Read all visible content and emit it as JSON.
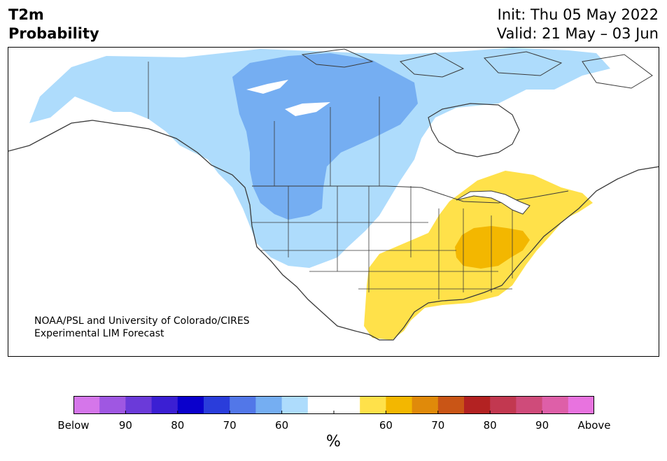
{
  "header": {
    "title_line1": "T2m",
    "title_line2": "Probability",
    "init": "Init: Thu 05 May 2022",
    "valid": "Valid: 21 May – 03 Jun"
  },
  "credit": {
    "line1": "NOAA/PSL and University of Colorado/CIRES",
    "line2": "Experimental LIM Forecast"
  },
  "colorbar": {
    "colors": [
      "#d576ea",
      "#9f57e2",
      "#6b3ad9",
      "#3b1fd3",
      "#0a00cc",
      "#2a3ddb",
      "#5277e8",
      "#75aef2",
      "#aedcfc",
      "#ffffff",
      "#ffffff",
      "#ffe14a",
      "#f3b700",
      "#e08a0a",
      "#c95516",
      "#b32222",
      "#c23850",
      "#cf4b7a",
      "#de5fa8",
      "#e873df"
    ],
    "tick_labels": [
      "Below",
      "90",
      "80",
      "70",
      "60",
      "",
      "60",
      "70",
      "80",
      "90",
      "Above"
    ],
    "unit": "%"
  },
  "map": {
    "region": "North America",
    "colors": {
      "prob_60_cold": "#aedcfc",
      "prob_70_cold": "#75aef2",
      "prob_60_warm": "#ffe14a",
      "prob_70_warm": "#f3b700",
      "boundaries": "#3a3a3a"
    },
    "regions": [
      {
        "name": "Alaska / Northwest Canada",
        "category": "Below 60%"
      },
      {
        "name": "Western Canada / Northwest US",
        "category": "Below 70%"
      },
      {
        "name": "Eastern US",
        "category": "Above 60%"
      },
      {
        "name": "Ohio Valley",
        "category": "Above 70%"
      }
    ]
  }
}
